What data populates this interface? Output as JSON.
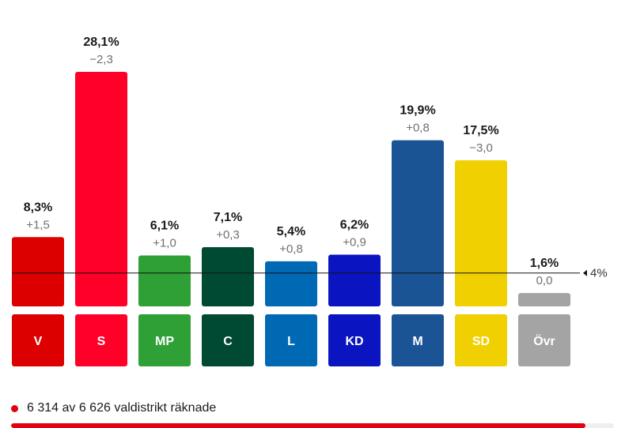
{
  "chart_data": {
    "type": "bar",
    "categories": [
      "V",
      "S",
      "MP",
      "C",
      "L",
      "KD",
      "M",
      "SD",
      "Övr"
    ],
    "values": [
      8.3,
      28.1,
      6.1,
      7.1,
      5.4,
      6.2,
      19.9,
      17.5,
      1.6
    ],
    "value_labels": [
      "8,3%",
      "28,1%",
      "6,1%",
      "7,1%",
      "5,4%",
      "6,2%",
      "19,9%",
      "17,5%",
      "1,6%"
    ],
    "change_labels": [
      "+1,5",
      "−2,3",
      "+1,0",
      "+0,3",
      "+0,8",
      "+0,9",
      "+0,8",
      "−3,0",
      "0,0"
    ],
    "colors": [
      "#dd0000",
      "#ff0028",
      "#2fa035",
      "#004a33",
      "#0069b4",
      "#0a14c0",
      "#1b5495",
      "#f0d000",
      "#a4a4a4"
    ],
    "threshold": {
      "value": 4,
      "label": "4%"
    },
    "ylim": [
      0,
      28.1
    ],
    "grid": false,
    "legend": "none"
  },
  "status": {
    "text": "6 314 av 6 626 valdistrikt räknade",
    "counted": 6314,
    "total": 6626,
    "progress": 0.953
  },
  "colors": {
    "accent": "#e3000f",
    "track": "#eeeeee"
  }
}
